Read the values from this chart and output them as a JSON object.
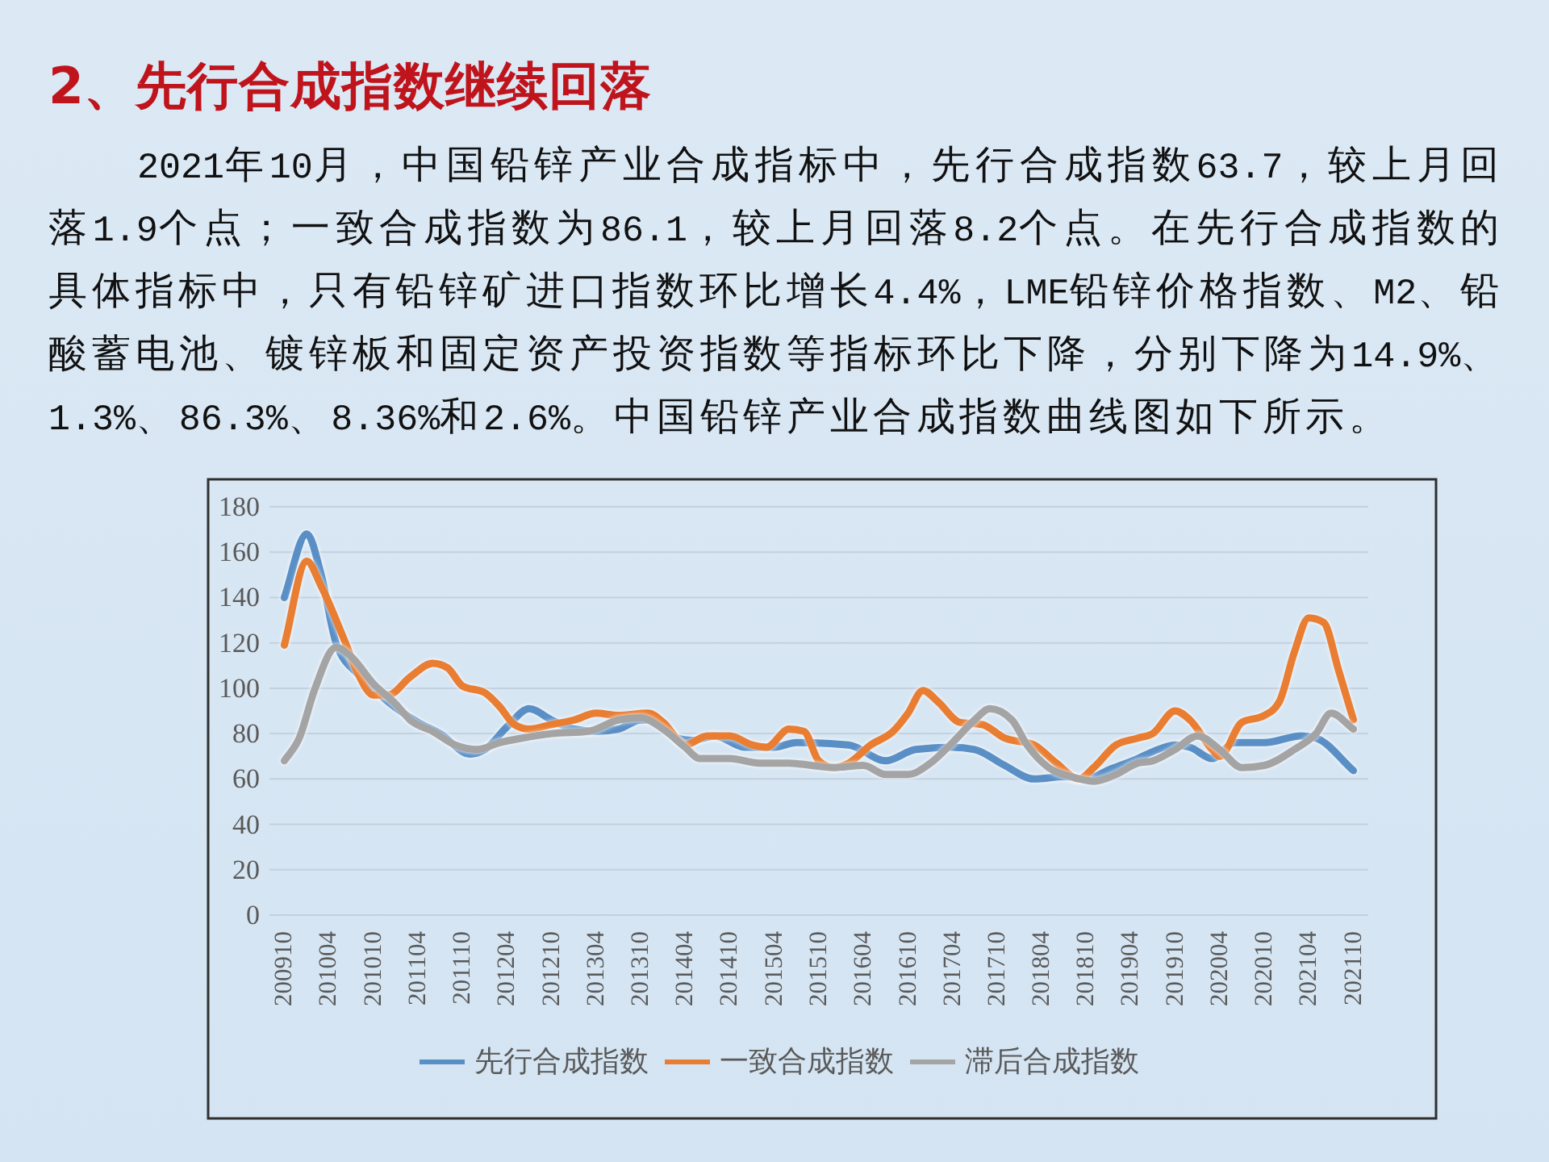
{
  "chart_data": {
    "type": "line",
    "title": "2、先行合成指数继续回落",
    "annotations": [
      "2021年10月，中国铅锌产业合成指标中，先行合成指数63.7，较上月回落1.9个点；一致合成指数为86.1，较上月回落8.2个点。在先行合成指数的具体指标中，只有铅锌矿进口指数环比增长4.4%，LME铅锌价格指数、M2、铅酸蓄电池、镀锌板和固定资产投资指数等指标环比下降，分别下降为14.9%、1.3%、86.3%、8.36%和2.6%。中国铅锌产业合成指数曲线图如下所示。"
    ],
    "xlim": [
      "2009-08",
      "2021-12"
    ],
    "xticks": [
      {
        "value": "2009-10",
        "label": "200910"
      },
      {
        "value": "2010-04",
        "label": "201004"
      },
      {
        "value": "2010-10",
        "label": "201010"
      },
      {
        "value": "2011-04",
        "label": "201104"
      },
      {
        "value": "2011-10",
        "label": "201110"
      },
      {
        "value": "2012-04",
        "label": "201204"
      },
      {
        "value": "2012-10",
        "label": "201210"
      },
      {
        "value": "2013-04",
        "label": "201304"
      },
      {
        "value": "2013-10",
        "label": "201310"
      },
      {
        "value": "2014-04",
        "label": "201404"
      },
      {
        "value": "2014-10",
        "label": "201410"
      },
      {
        "value": "2015-04",
        "label": "201504"
      },
      {
        "value": "2015-10",
        "label": "201510"
      },
      {
        "value": "2016-04",
        "label": "201604"
      },
      {
        "value": "2016-10",
        "label": "201610"
      },
      {
        "value": "2017-04",
        "label": "201704"
      },
      {
        "value": "2017-10",
        "label": "201710"
      },
      {
        "value": "2018-04",
        "label": "201804"
      },
      {
        "value": "2018-10",
        "label": "201810"
      },
      {
        "value": "2019-04",
        "label": "201904"
      },
      {
        "value": "2019-10",
        "label": "201910"
      },
      {
        "value": "2020-04",
        "label": "202004"
      },
      {
        "value": "2020-10",
        "label": "202010"
      },
      {
        "value": "2021-04",
        "label": "202104"
      },
      {
        "value": "2021-10",
        "label": "202110"
      }
    ],
    "ylim": [
      0,
      180
    ],
    "yticks": [
      0,
      20,
      40,
      60,
      80,
      100,
      120,
      140,
      160,
      180
    ],
    "grid": "y",
    "legend": "bottom",
    "series": [
      {
        "name": "先行合成指数",
        "color": "#5a8fc6",
        "x": [
          "2009-10",
          "2010-01",
          "2010-03",
          "2010-05",
          "2010-08",
          "2010-10",
          "2010-12",
          "2011-04",
          "2011-07",
          "2011-11",
          "2012-01",
          "2012-04",
          "2012-07",
          "2012-10",
          "2013-01",
          "2013-04",
          "2013-07",
          "2013-10",
          "2013-12",
          "2014-03",
          "2014-05",
          "2014-08",
          "2014-12",
          "2015-04",
          "2015-07",
          "2016-02",
          "2016-07",
          "2016-11",
          "2017-04",
          "2017-07",
          "2017-11",
          "2018-03",
          "2018-07",
          "2018-10",
          "2019-01",
          "2019-05",
          "2019-07",
          "2019-10",
          "2019-12",
          "2020-03",
          "2020-06",
          "2020-10",
          "2021-03",
          "2021-05",
          "2021-10"
        ],
        "values": [
          140,
          168,
          150,
          120,
          106,
          100,
          94,
          85,
          80,
          71,
          73,
          83,
          91,
          86,
          82,
          81,
          82,
          86,
          86,
          78,
          77,
          79,
          74,
          74,
          76,
          75,
          68,
          73,
          74,
          73,
          66,
          60,
          61,
          60,
          64,
          69,
          72,
          75,
          74,
          69,
          76,
          76,
          79,
          78,
          63.7
        ]
      },
      {
        "name": "一致合成指数",
        "color": "#e97d32",
        "x": [
          "2009-10",
          "2010-01",
          "2010-03",
          "2010-06",
          "2010-08",
          "2010-10",
          "2010-12",
          "2011-03",
          "2011-06",
          "2011-08",
          "2011-10",
          "2012-01",
          "2012-03",
          "2012-05",
          "2012-07",
          "2012-10",
          "2013-01",
          "2013-04",
          "2013-07",
          "2013-11",
          "2014-01",
          "2014-04",
          "2014-07",
          "2014-10",
          "2015-01",
          "2015-03",
          "2015-06",
          "2015-08",
          "2015-10",
          "2015-12",
          "2016-02",
          "2016-05",
          "2016-08",
          "2016-10",
          "2016-12",
          "2017-02",
          "2017-05",
          "2017-08",
          "2017-11",
          "2018-03",
          "2018-06",
          "2018-09",
          "2018-11",
          "2019-02",
          "2019-05",
          "2019-07",
          "2019-10",
          "2019-12",
          "2020-03",
          "2020-04",
          "2020-07",
          "2020-10",
          "2020-12",
          "2021-02",
          "2021-04",
          "2021-06",
          "2021-08",
          "2021-10"
        ],
        "values": [
          119,
          156,
          145,
          122,
          106,
          97,
          97,
          105,
          111,
          109,
          101,
          98,
          92,
          84,
          82,
          84,
          86,
          89,
          88,
          89,
          85,
          75,
          79,
          79,
          75,
          74,
          82,
          81,
          68,
          65,
          67,
          75,
          81,
          89,
          99,
          94,
          85,
          84,
          78,
          75,
          67,
          60,
          65,
          75,
          78,
          80,
          90,
          86,
          73,
          70,
          85,
          88,
          94,
          116,
          131,
          129,
          108,
          86.1
        ]
      },
      {
        "name": "滞后合成指数",
        "color": "#a4a4a4",
        "x": [
          "2009-10",
          "2009-12",
          "2010-02",
          "2010-05",
          "2010-07",
          "2010-10",
          "2011-01",
          "2011-03",
          "2011-06",
          "2011-09",
          "2011-12",
          "2012-03",
          "2012-06",
          "2012-10",
          "2013-03",
          "2013-07",
          "2013-10",
          "2014-01",
          "2014-04",
          "2014-06",
          "2014-10",
          "2015-02",
          "2015-06",
          "2015-09",
          "2015-12",
          "2016-04",
          "2016-07",
          "2016-10",
          "2017-01",
          "2017-04",
          "2017-07",
          "2017-09",
          "2017-12",
          "2018-02",
          "2018-05",
          "2018-08",
          "2018-11",
          "2019-02",
          "2019-05",
          "2019-07",
          "2019-10",
          "2020-01",
          "2020-04",
          "2020-07",
          "2020-10",
          "2021-02",
          "2021-05",
          "2021-07",
          "2021-10"
        ],
        "values": [
          68,
          78,
          99,
          118,
          114,
          102,
          93,
          86,
          81,
          75,
          73,
          76,
          78,
          80,
          81,
          86,
          87,
          82,
          74,
          69,
          69,
          67,
          67,
          66,
          65,
          66,
          62,
          62,
          67,
          76,
          86,
          91,
          86,
          75,
          65,
          61,
          59,
          62,
          67,
          68,
          73,
          79,
          73,
          65,
          66,
          73,
          80,
          89,
          82
        ]
      }
    ]
  }
}
